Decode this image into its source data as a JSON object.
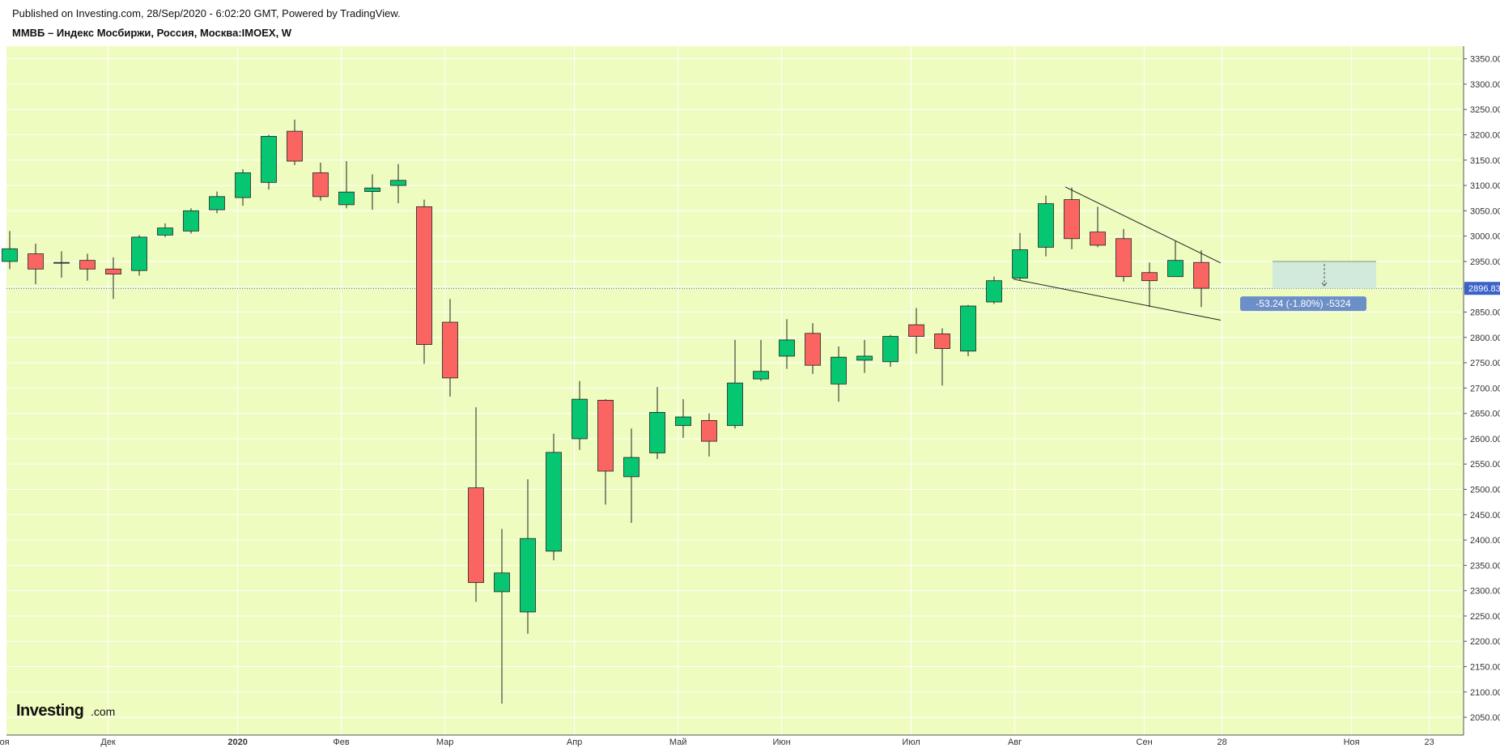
{
  "header": {
    "published": "Published on Investing.com, 28/Sep/2020 - 6:02:20 GMT, Powered by TradingView.",
    "symbol": "ММВБ – Индекс Мосбиржи, Россия, Москва:IMOEX, W"
  },
  "logo": {
    "word": "Investing",
    "suffix": ".com"
  },
  "colors": {
    "background": "#eefcbf",
    "grid": "#ffffff",
    "up": "#07c672",
    "down": "#fb6561",
    "wick": "#222222",
    "price_line": "#3b58c8",
    "price_tag": "#3b62c8",
    "measure_bg": "#6c8fc7",
    "measure_zone": "#cde8dd"
  },
  "chart_data": {
    "type": "candlestick",
    "timeframe": "W",
    "ylim": [
      2015,
      3375
    ],
    "y_ticks": [
      2050,
      2100,
      2150,
      2200,
      2250,
      2300,
      2350,
      2400,
      2450,
      2500,
      2550,
      2600,
      2650,
      2700,
      2750,
      2800,
      2850,
      2900,
      2950,
      3000,
      3050,
      3100,
      3150,
      3200,
      3250,
      3300,
      3350
    ],
    "y_tick_labels": [
      "2050.00",
      "2100.00",
      "2150.00",
      "2200.00",
      "2250.00",
      "2300.00",
      "2350.00",
      "2400.00",
      "2450.00",
      "2500.00",
      "2550.00",
      "2600.00",
      "2650.00",
      "2700.00",
      "2750.00",
      "2800.00",
      "2850.00",
      "2900.00",
      "2950.00",
      "3000.00",
      "3050.00",
      "3100.00",
      "3150.00",
      "3200.00",
      "3250.00",
      "3300.00",
      "3350.00"
    ],
    "x_labels": [
      {
        "label": "оя",
        "pos": 0.3
      },
      {
        "label": "Дек",
        "pos": 4.3
      },
      {
        "label": "2020",
        "pos": 9.3,
        "bold": true
      },
      {
        "label": "Фев",
        "pos": 13.3
      },
      {
        "label": "Мар",
        "pos": 17.3
      },
      {
        "label": "Апр",
        "pos": 22.3
      },
      {
        "label": "Май",
        "pos": 26.3
      },
      {
        "label": "Июн",
        "pos": 30.3
      },
      {
        "label": "Июл",
        "pos": 35.3
      },
      {
        "label": "Авг",
        "pos": 39.3
      },
      {
        "label": "Сен",
        "pos": 44.3
      },
      {
        "label": "28",
        "pos": 47.3
      },
      {
        "label": "Ноя",
        "pos": 52.3
      },
      {
        "label": "23",
        "pos": 55.3
      }
    ],
    "candles": [
      {
        "open": 2950,
        "high": 3010,
        "low": 2935,
        "close": 2975
      },
      {
        "open": 2965,
        "high": 2985,
        "low": 2905,
        "close": 2935
      },
      {
        "open": 2948,
        "high": 2970,
        "low": 2918,
        "close": 2948
      },
      {
        "open": 2952,
        "high": 2965,
        "low": 2912,
        "close": 2935
      },
      {
        "open": 2935,
        "high": 2958,
        "low": 2876,
        "close": 2925
      },
      {
        "open": 2932,
        "high": 3002,
        "low": 2922,
        "close": 2998
      },
      {
        "open": 3002,
        "high": 3025,
        "low": 2998,
        "close": 3016
      },
      {
        "open": 3010,
        "high": 3055,
        "low": 3005,
        "close": 3050
      },
      {
        "open": 3052,
        "high": 3088,
        "low": 3045,
        "close": 3078
      },
      {
        "open": 3076,
        "high": 3132,
        "low": 3060,
        "close": 3125
      },
      {
        "open": 3106,
        "high": 3200,
        "low": 3092,
        "close": 3197
      },
      {
        "open": 3207,
        "high": 3230,
        "low": 3140,
        "close": 3148
      },
      {
        "open": 3125,
        "high": 3145,
        "low": 3070,
        "close": 3078
      },
      {
        "open": 3062,
        "high": 3148,
        "low": 3055,
        "close": 3087
      },
      {
        "open": 3088,
        "high": 3122,
        "low": 3052,
        "close": 3095
      },
      {
        "open": 3100,
        "high": 3142,
        "low": 3065,
        "close": 3110
      },
      {
        "open": 3058,
        "high": 3072,
        "low": 2748,
        "close": 2786
      },
      {
        "open": 2830,
        "high": 2876,
        "low": 2683,
        "close": 2720
      },
      {
        "open": 2503,
        "high": 2662,
        "low": 2278,
        "close": 2316
      },
      {
        "open": 2298,
        "high": 2422,
        "low": 2077,
        "close": 2335
      },
      {
        "open": 2258,
        "high": 2520,
        "low": 2215,
        "close": 2403
      },
      {
        "open": 2378,
        "high": 2610,
        "low": 2360,
        "close": 2573
      },
      {
        "open": 2600,
        "high": 2714,
        "low": 2578,
        "close": 2678
      },
      {
        "open": 2676,
        "high": 2678,
        "low": 2470,
        "close": 2536
      },
      {
        "open": 2525,
        "high": 2620,
        "low": 2434,
        "close": 2563
      },
      {
        "open": 2572,
        "high": 2702,
        "low": 2560,
        "close": 2652
      },
      {
        "open": 2626,
        "high": 2678,
        "low": 2602,
        "close": 2643
      },
      {
        "open": 2636,
        "high": 2650,
        "low": 2565,
        "close": 2595
      },
      {
        "open": 2626,
        "high": 2795,
        "low": 2620,
        "close": 2710
      },
      {
        "open": 2718,
        "high": 2795,
        "low": 2714,
        "close": 2733
      },
      {
        "open": 2763,
        "high": 2836,
        "low": 2738,
        "close": 2795
      },
      {
        "open": 2808,
        "high": 2828,
        "low": 2728,
        "close": 2745
      },
      {
        "open": 2708,
        "high": 2782,
        "low": 2673,
        "close": 2761
      },
      {
        "open": 2755,
        "high": 2795,
        "low": 2730,
        "close": 2763
      },
      {
        "open": 2752,
        "high": 2805,
        "low": 2742,
        "close": 2802
      },
      {
        "open": 2825,
        "high": 2858,
        "low": 2768,
        "close": 2802
      },
      {
        "open": 2807,
        "high": 2818,
        "low": 2705,
        "close": 2778
      },
      {
        "open": 2773,
        "high": 2864,
        "low": 2763,
        "close": 2862
      },
      {
        "open": 2870,
        "high": 2920,
        "low": 2866,
        "close": 2912
      },
      {
        "open": 2917,
        "high": 3006,
        "low": 2912,
        "close": 2973
      },
      {
        "open": 2978,
        "high": 3080,
        "low": 2960,
        "close": 3064
      },
      {
        "open": 3072,
        "high": 3096,
        "low": 2974,
        "close": 2995
      },
      {
        "open": 3008,
        "high": 3058,
        "low": 2978,
        "close": 2982
      },
      {
        "open": 2995,
        "high": 3014,
        "low": 2910,
        "close": 2920
      },
      {
        "open": 2928,
        "high": 2948,
        "low": 2860,
        "close": 2912
      },
      {
        "open": 2920,
        "high": 2990,
        "low": 2920,
        "close": 2952
      },
      {
        "open": 2948,
        "high": 2972,
        "low": 2860,
        "close": 2897
      }
    ],
    "trendlines": [
      {
        "from": [
          40.75,
          3097
        ],
        "to": [
          46.75,
          2947
        ]
      },
      {
        "from": [
          38.75,
          2915
        ],
        "to": [
          46.75,
          2834
        ]
      }
    ],
    "last_price": 2896.83,
    "last_price_label": "2896.83",
    "measure": {
      "label": "-53.24 (-1.80%) -5324",
      "from_value": 2950,
      "to_value": 2897,
      "zone_start": 48.75,
      "zone_end": 52.75
    }
  }
}
